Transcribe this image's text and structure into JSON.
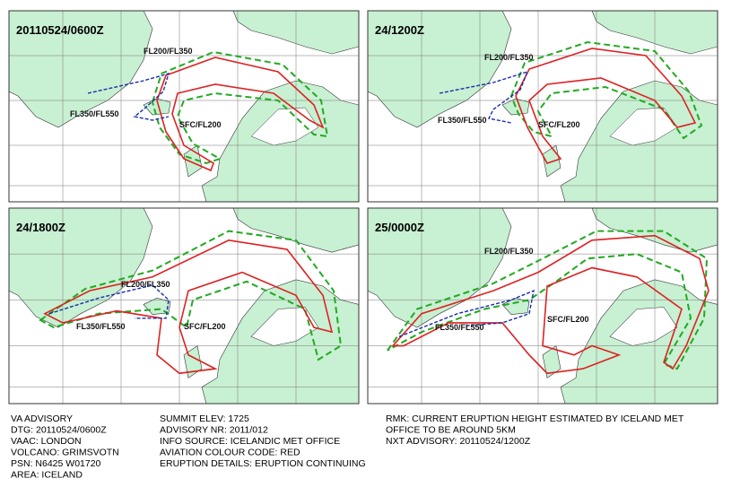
{
  "panels": [
    {
      "time": "20110524/0600Z",
      "labels": [
        "FL200/FL350",
        "FL350/FL550",
        "SFC/FL200"
      ]
    },
    {
      "time": "24/1200Z",
      "labels": [
        "FL200/FL350",
        "FL350/FL550",
        "SFC/FL200"
      ]
    },
    {
      "time": "24/1800Z",
      "labels": [
        "FL200/FL350",
        "FL350/FL550",
        "SFC/FL200"
      ]
    },
    {
      "time": "25/0000Z",
      "labels": [
        "FL200/FL350",
        "FL350/FL550",
        "SFC/FL200"
      ]
    }
  ],
  "advisory": {
    "columns": [
      [
        "VA ADVISORY",
        "DTG:  20110524/0600Z",
        "VAAC:  LONDON",
        "VOLCANO:  GRIMSVOTN",
        "PSN:  N6425 W01720",
        "AREA:  ICELAND"
      ],
      [
        "SUMMIT ELEV:  1725",
        "ADVISORY NR:  2011/012",
        "INFO SOURCE:  ICELANDIC MET OFFICE",
        "AVIATION COLOUR CODE:  RED",
        "ERUPTION DETAILS:  ERUPTION CONTINUING"
      ],
      [
        "RMK:  CURRENT ERUPTION HEIGHT ESTIMATED BY ICELAND MET",
        "OFFICE TO BE AROUND 5KM",
        "NXT ADVISORY:  20110524/1200Z"
      ]
    ]
  }
}
